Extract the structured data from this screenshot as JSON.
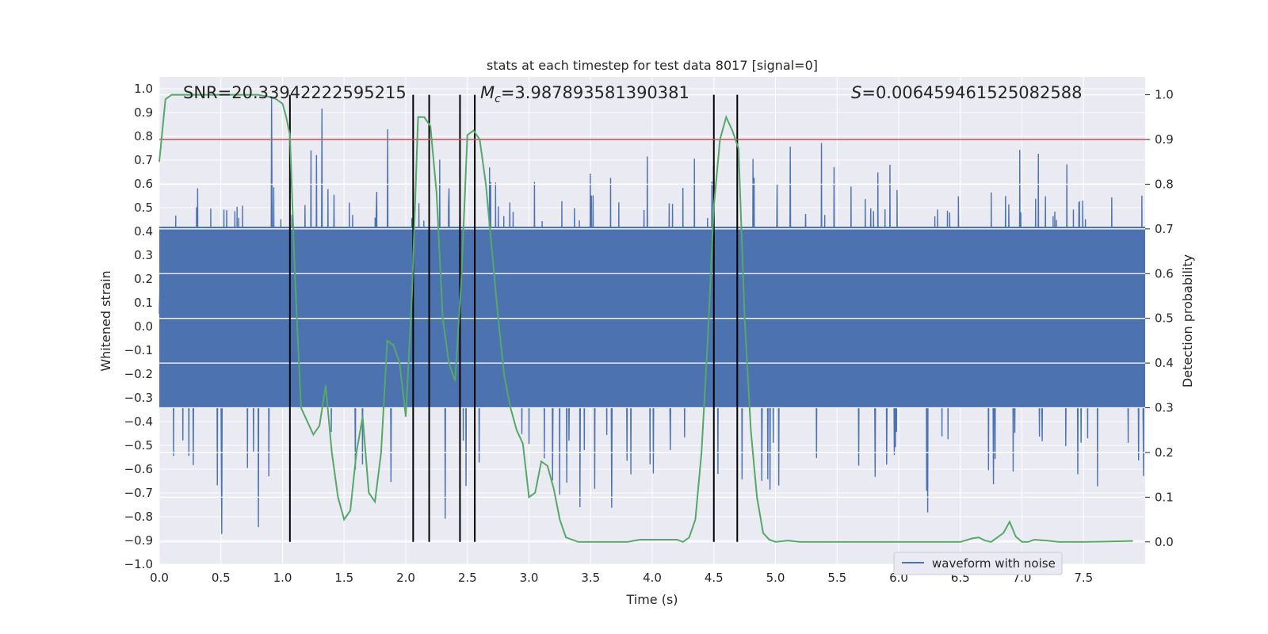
{
  "chart_data": {
    "type": "line",
    "title": "stats at each timestep for test data 8017 [signal=0]",
    "xlabel": "Time (s)",
    "ylabel_left": "Whitened strain",
    "ylabel_right": "Detection probability",
    "xlim": [
      0.0,
      8.0
    ],
    "ylim_left": [
      -1.0,
      1.05
    ],
    "ylim_right": [
      -0.05,
      1.04
    ],
    "x_ticks": [
      "0.0",
      "0.5",
      "1.0",
      "1.5",
      "2.0",
      "2.5",
      "3.0",
      "3.5",
      "4.0",
      "4.5",
      "5.0",
      "5.5",
      "6.0",
      "6.5",
      "7.0",
      "7.5"
    ],
    "y_ticks_left": [
      "-1.0",
      "-0.9",
      "-0.8",
      "-0.7",
      "-0.6",
      "-0.5",
      "-0.4",
      "-0.3",
      "-0.2",
      "-0.1",
      "0.0",
      "0.1",
      "0.2",
      "0.3",
      "0.4",
      "0.5",
      "0.6",
      "0.7",
      "0.8",
      "0.9",
      "1.0"
    ],
    "y_ticks_right": [
      "0.0",
      "0.1",
      "0.2",
      "0.3",
      "0.4",
      "0.5",
      "0.6",
      "0.7",
      "0.8",
      "0.9",
      "1.0"
    ],
    "annotations": {
      "snr": "SNR=20.33942222595215",
      "mc_symbol": "M",
      "mc_sub": "c",
      "mc_value": "=3.987893581390381",
      "s_symbol": "S",
      "s_value": "=0.006459461525082588"
    },
    "legend": {
      "label": "waveform with noise",
      "placement": "lower-right"
    },
    "waveform": {
      "name": "waveform with noise",
      "color": "#4c72b0",
      "duration_s": 8.0,
      "n_samples": 1800,
      "dense_band": [
        -0.34,
        0.42
      ],
      "outer_envelope": [
        -0.9,
        1.0
      ]
    },
    "threshold": {
      "value": 0.9,
      "axis": "right",
      "color": "#c44e52"
    },
    "detection_probability": {
      "name": "detection probability",
      "color": "#55a868",
      "x": [
        0.0,
        0.05,
        0.1,
        0.2,
        0.4,
        0.6,
        0.8,
        0.9,
        0.95,
        1.0,
        1.03,
        1.06,
        1.1,
        1.15,
        1.2,
        1.25,
        1.3,
        1.35,
        1.4,
        1.45,
        1.5,
        1.55,
        1.6,
        1.65,
        1.7,
        1.75,
        1.8,
        1.85,
        1.9,
        1.95,
        2.0,
        2.05,
        2.1,
        2.15,
        2.2,
        2.25,
        2.3,
        2.35,
        2.4,
        2.45,
        2.5,
        2.55,
        2.6,
        2.65,
        2.7,
        2.75,
        2.8,
        2.85,
        2.9,
        2.95,
        3.0,
        3.05,
        3.1,
        3.15,
        3.2,
        3.25,
        3.3,
        3.4,
        3.6,
        3.8,
        3.9,
        4.0,
        4.1,
        4.15,
        4.2,
        4.25,
        4.3,
        4.35,
        4.4,
        4.45,
        4.5,
        4.55,
        4.6,
        4.65,
        4.7,
        4.75,
        4.8,
        4.85,
        4.9,
        4.95,
        5.0,
        5.1,
        5.2,
        5.6,
        6.0,
        6.5,
        6.6,
        6.65,
        6.7,
        6.75,
        6.8,
        6.85,
        6.9,
        6.95,
        7.0,
        7.05,
        7.1,
        7.2,
        7.3,
        7.5,
        7.9
      ],
      "y": [
        0.85,
        0.99,
        1.0,
        1.0,
        1.0,
        1.0,
        1.0,
        0.995,
        0.99,
        0.98,
        0.95,
        0.91,
        0.6,
        0.3,
        0.27,
        0.24,
        0.26,
        0.35,
        0.2,
        0.1,
        0.05,
        0.07,
        0.2,
        0.28,
        0.11,
        0.09,
        0.2,
        0.45,
        0.44,
        0.4,
        0.28,
        0.55,
        0.95,
        0.95,
        0.93,
        0.78,
        0.5,
        0.4,
        0.36,
        0.58,
        0.91,
        0.92,
        0.9,
        0.8,
        0.65,
        0.5,
        0.37,
        0.3,
        0.25,
        0.22,
        0.1,
        0.11,
        0.18,
        0.17,
        0.12,
        0.05,
        0.01,
        0.0,
        0.0,
        0.0,
        0.005,
        0.005,
        0.005,
        0.005,
        0.005,
        0.0,
        0.01,
        0.05,
        0.2,
        0.45,
        0.75,
        0.9,
        0.95,
        0.92,
        0.88,
        0.5,
        0.25,
        0.1,
        0.02,
        0.005,
        0.0,
        0.003,
        0.0,
        0.0,
        0.0,
        0.0,
        0.008,
        0.01,
        0.003,
        0.0,
        0.01,
        0.02,
        0.045,
        0.012,
        0.0,
        0.0,
        0.005,
        0.003,
        0.0,
        0.0,
        0.002
      ]
    },
    "vlines_s": [
      1.06,
      2.06,
      2.19,
      2.44,
      2.56,
      4.5,
      4.69
    ]
  }
}
